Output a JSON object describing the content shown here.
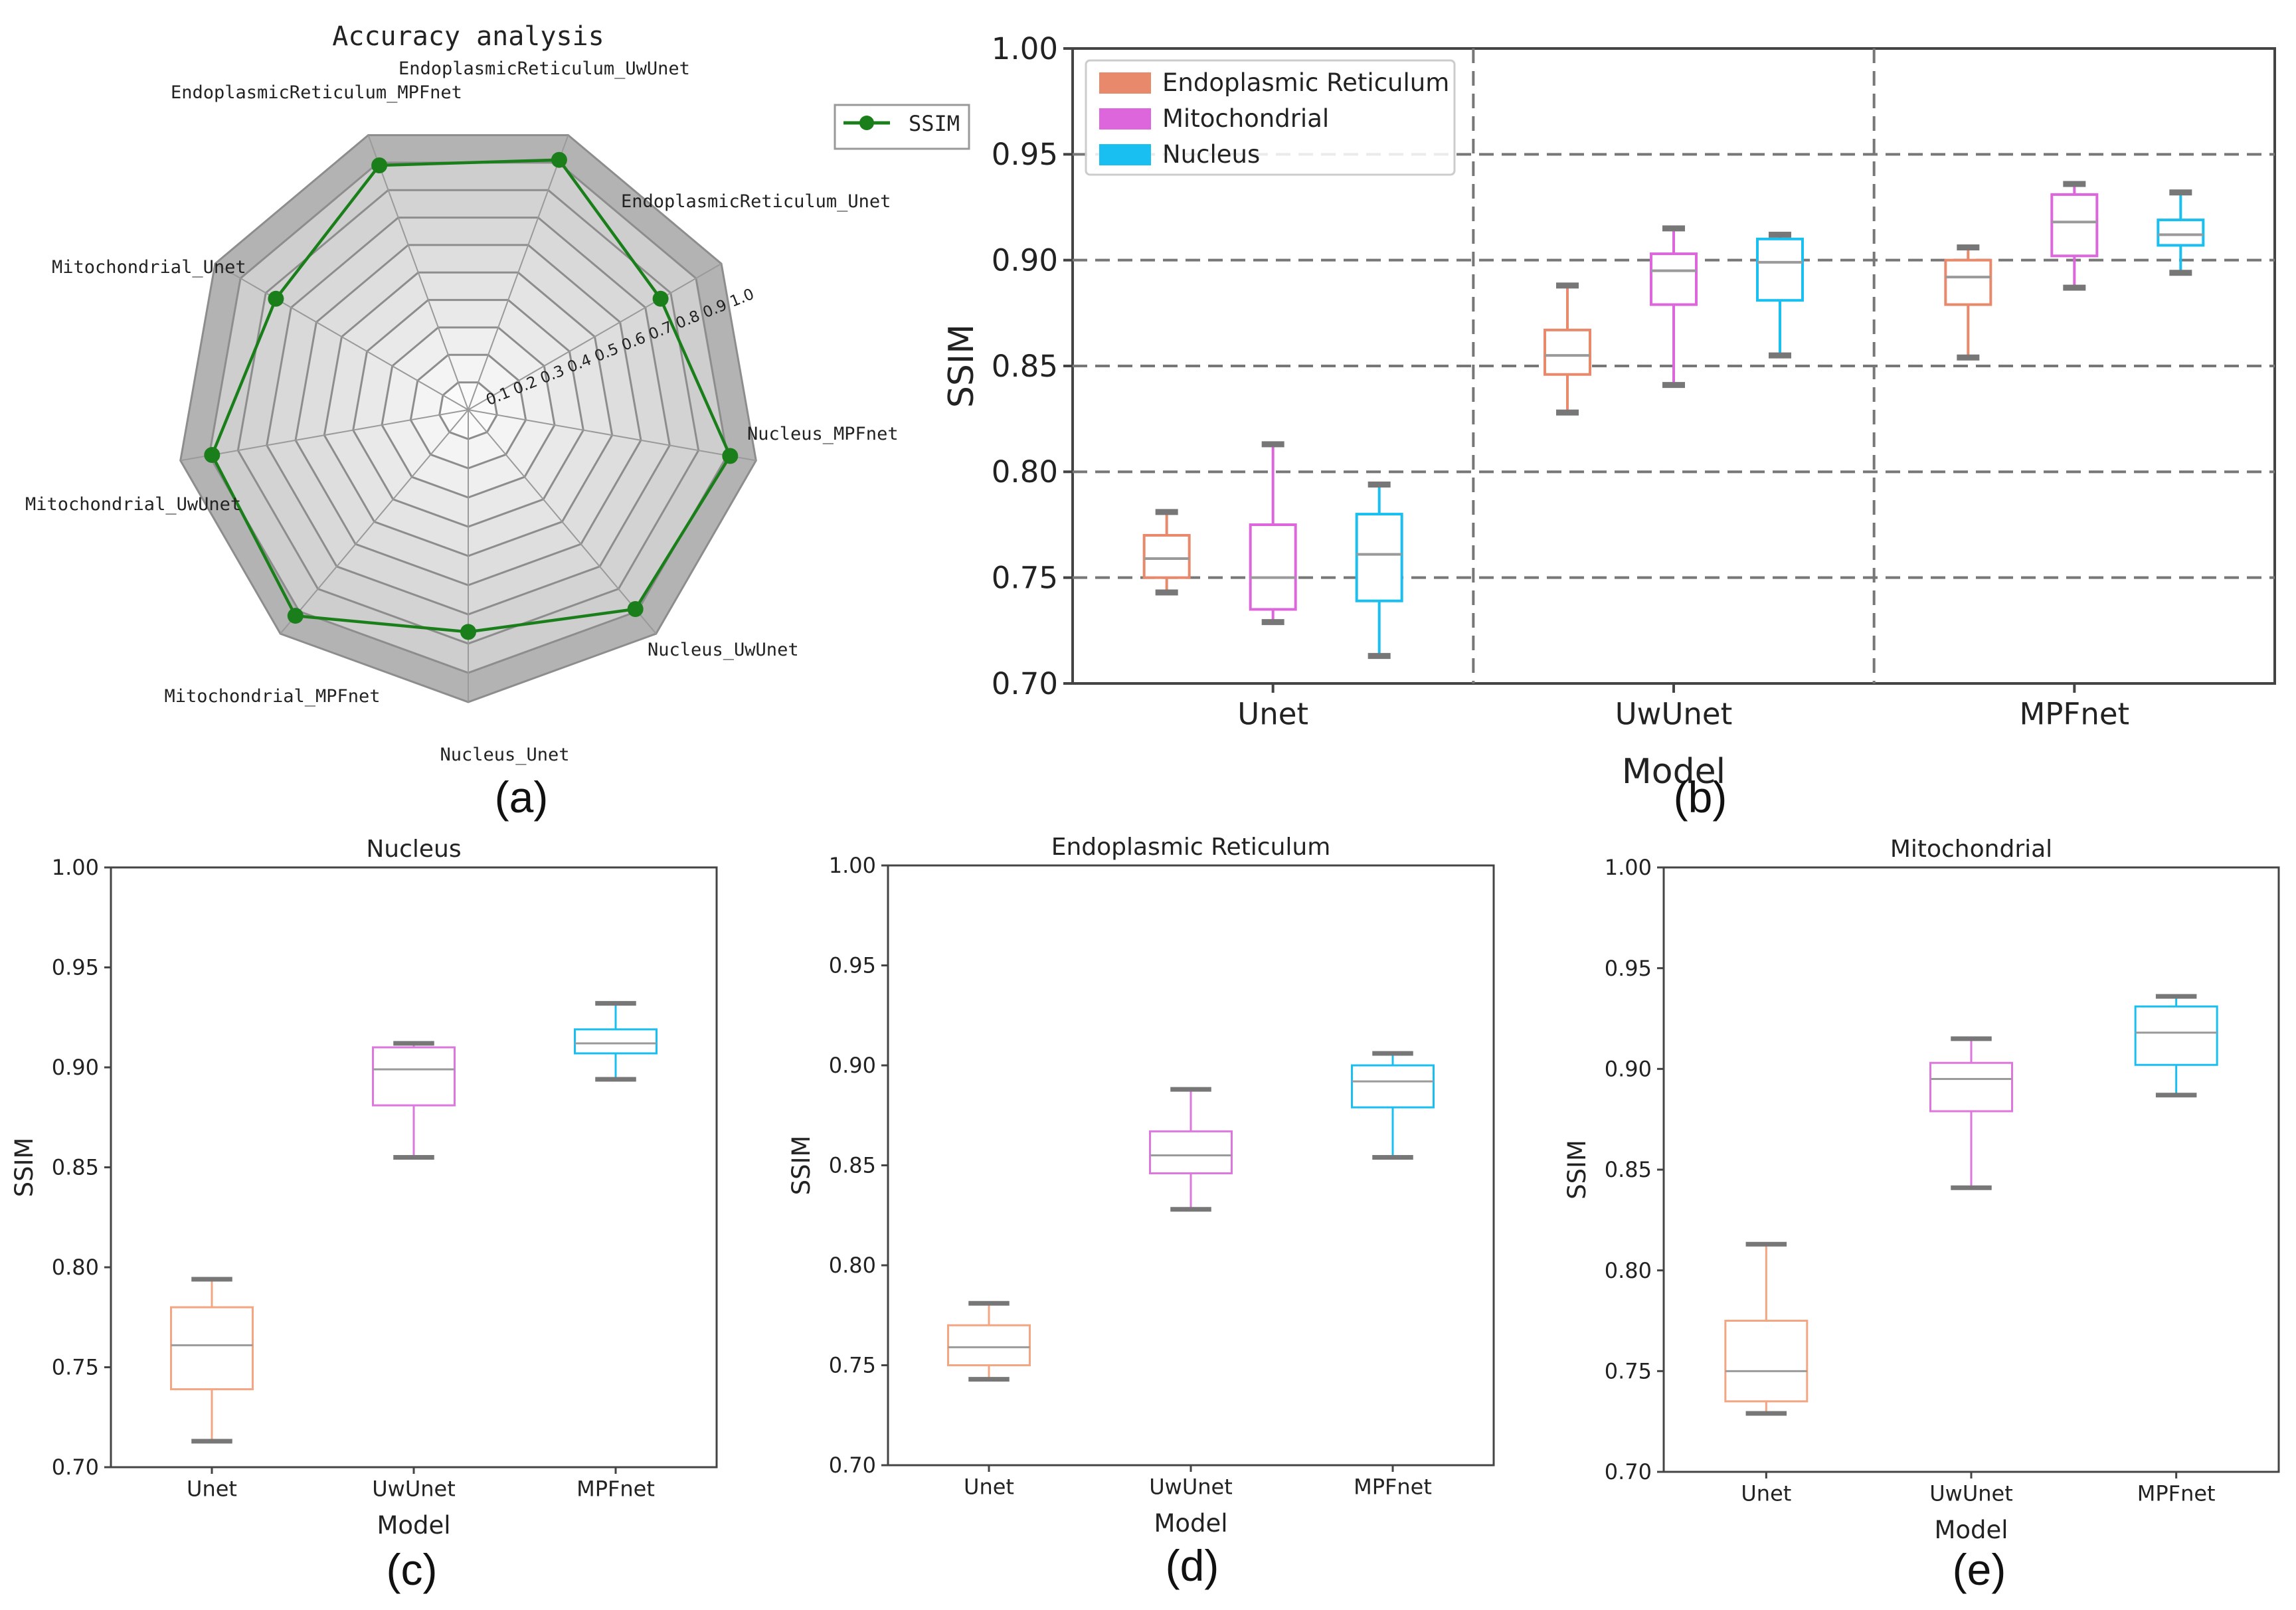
{
  "chart_data": [
    {
      "id": "a",
      "type": "radar",
      "title": "Accuracy analysis",
      "panel_label": "(a)",
      "legend": [
        "SSIM"
      ],
      "series_color": "#1a7f1a",
      "axes": [
        "EndoplasmicReticulum_UwUnet",
        "EndoplasmicReticulum_Unet",
        "Nucleus_MPFnet",
        "Nucleus_UwUnet",
        "Nucleus_Unet",
        "Mitochondrial_MPFnet",
        "Mitochondrial_UwUnet",
        "Mitochondrial_Unet",
        "EndoplasmicReticulum_MPFnet"
      ],
      "values": [
        0.91,
        0.76,
        0.91,
        0.89,
        0.76,
        0.92,
        0.89,
        0.76,
        0.89
      ],
      "r_ticks": [
        "0.1",
        "0.2",
        "0.3",
        "0.4",
        "0.5",
        "0.6",
        "0.7",
        "0.8",
        "0.9",
        "1.0"
      ],
      "rlim": [
        0,
        1.0
      ]
    },
    {
      "id": "b",
      "type": "boxplot",
      "panel_label": "(b)",
      "xlabel": "Model",
      "ylabel": "SSIM",
      "ylim": [
        0.7,
        1.0
      ],
      "yticks": [
        "0.70",
        "0.75",
        "0.80",
        "0.85",
        "0.90",
        "0.95",
        "1.00"
      ],
      "categories": [
        "Unet",
        "UwUnet",
        "MPFnet"
      ],
      "legend": [
        "Endoplasmic Reticulum",
        "Mitochondrial",
        "Nucleus"
      ],
      "colors": [
        "#e8896b",
        "#dd66dd",
        "#19bff0"
      ],
      "series": [
        {
          "name": "Endoplasmic Reticulum",
          "boxes": [
            {
              "whislo": 0.743,
              "q1": 0.75,
              "med": 0.759,
              "q3": 0.77,
              "whishi": 0.781
            },
            {
              "whislo": 0.828,
              "q1": 0.846,
              "med": 0.855,
              "q3": 0.867,
              "whishi": 0.888
            },
            {
              "whislo": 0.854,
              "q1": 0.879,
              "med": 0.892,
              "q3": 0.9,
              "whishi": 0.906
            }
          ]
        },
        {
          "name": "Mitochondrial",
          "boxes": [
            {
              "whislo": 0.729,
              "q1": 0.735,
              "med": 0.75,
              "q3": 0.775,
              "whishi": 0.813
            },
            {
              "whislo": 0.841,
              "q1": 0.879,
              "med": 0.895,
              "q3": 0.903,
              "whishi": 0.915
            },
            {
              "whislo": 0.887,
              "q1": 0.902,
              "med": 0.918,
              "q3": 0.931,
              "whishi": 0.936
            }
          ]
        },
        {
          "name": "Nucleus",
          "boxes": [
            {
              "whislo": 0.713,
              "q1": 0.739,
              "med": 0.761,
              "q3": 0.78,
              "whishi": 0.794
            },
            {
              "whislo": 0.855,
              "q1": 0.881,
              "med": 0.899,
              "q3": 0.91,
              "whishi": 0.912
            },
            {
              "whislo": 0.894,
              "q1": 0.907,
              "med": 0.912,
              "q3": 0.919,
              "whishi": 0.932
            }
          ]
        }
      ]
    },
    {
      "id": "c",
      "type": "boxplot",
      "title": "Nucleus",
      "panel_label": "(c)",
      "xlabel": "Model",
      "ylabel": "SSIM",
      "ylim": [
        0.7,
        1.0
      ],
      "yticks": [
        "0.70",
        "0.75",
        "0.80",
        "0.85",
        "0.90",
        "0.95",
        "1.00"
      ],
      "categories": [
        "Unet",
        "UwUnet",
        "MPFnet"
      ],
      "colors": [
        "#f4a582",
        "#dd77dd",
        "#19bff0"
      ],
      "boxes": [
        {
          "whislo": 0.713,
          "q1": 0.739,
          "med": 0.761,
          "q3": 0.78,
          "whishi": 0.794
        },
        {
          "whislo": 0.855,
          "q1": 0.881,
          "med": 0.899,
          "q3": 0.91,
          "whishi": 0.912
        },
        {
          "whislo": 0.894,
          "q1": 0.907,
          "med": 0.912,
          "q3": 0.919,
          "whishi": 0.932
        }
      ]
    },
    {
      "id": "d",
      "type": "boxplot",
      "title": "Endoplasmic Reticulum",
      "panel_label": "(d)",
      "xlabel": "Model",
      "ylabel": "SSIM",
      "ylim": [
        0.7,
        1.0
      ],
      "yticks": [
        "0.70",
        "0.75",
        "0.80",
        "0.85",
        "0.90",
        "0.95",
        "1.00"
      ],
      "categories": [
        "Unet",
        "UwUnet",
        "MPFnet"
      ],
      "colors": [
        "#f4a582",
        "#dd77dd",
        "#19bff0"
      ],
      "boxes": [
        {
          "whislo": 0.743,
          "q1": 0.75,
          "med": 0.759,
          "q3": 0.77,
          "whishi": 0.781
        },
        {
          "whislo": 0.828,
          "q1": 0.846,
          "med": 0.855,
          "q3": 0.867,
          "whishi": 0.888
        },
        {
          "whislo": 0.854,
          "q1": 0.879,
          "med": 0.892,
          "q3": 0.9,
          "whishi": 0.906
        }
      ]
    },
    {
      "id": "e",
      "type": "boxplot",
      "title": "Mitochondrial",
      "panel_label": "(e)",
      "xlabel": "Model",
      "ylabel": "SSIM",
      "ylim": [
        0.7,
        1.0
      ],
      "yticks": [
        "0.70",
        "0.75",
        "0.80",
        "0.85",
        "0.90",
        "0.95",
        "1.00"
      ],
      "categories": [
        "Unet",
        "UwUnet",
        "MPFnet"
      ],
      "colors": [
        "#f4a582",
        "#dd77dd",
        "#19bff0"
      ],
      "boxes": [
        {
          "whislo": 0.729,
          "q1": 0.735,
          "med": 0.75,
          "q3": 0.775,
          "whishi": 0.813
        },
        {
          "whislo": 0.841,
          "q1": 0.879,
          "med": 0.895,
          "q3": 0.903,
          "whishi": 0.915
        },
        {
          "whislo": 0.887,
          "q1": 0.902,
          "med": 0.918,
          "q3": 0.931,
          "whishi": 0.936
        }
      ]
    }
  ]
}
